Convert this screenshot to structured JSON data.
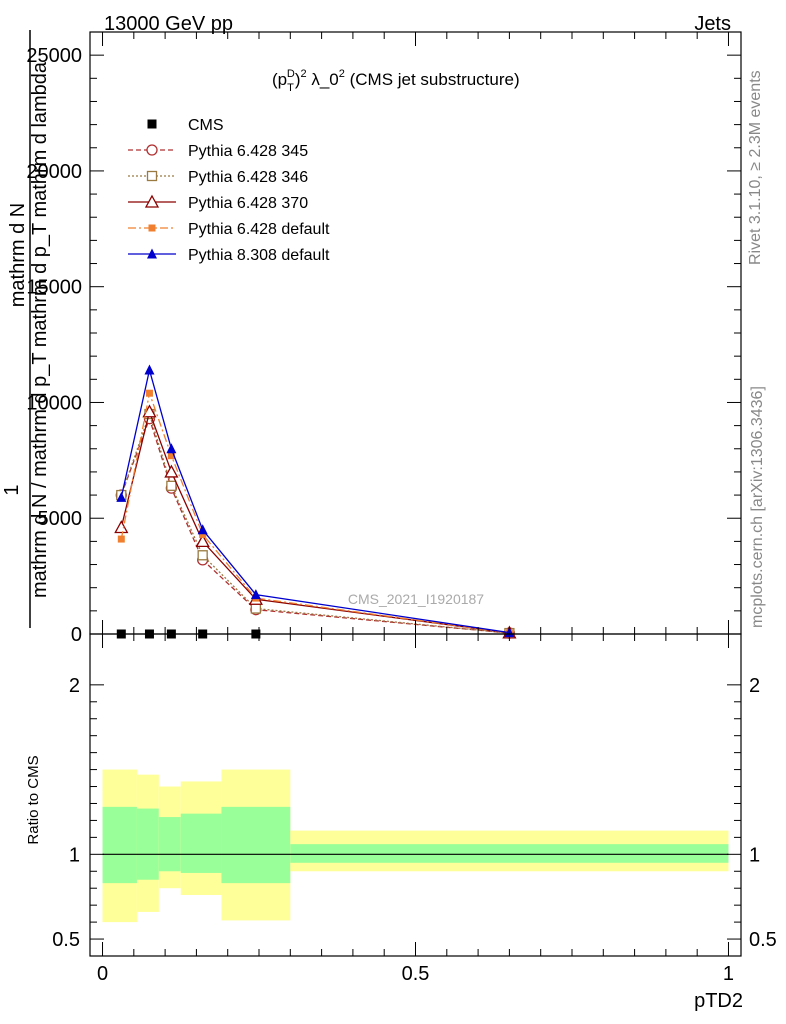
{
  "header": {
    "energy_label": "13000 GeV pp",
    "process_label": "Jets"
  },
  "side_labels": {
    "rivet": "Rivet 3.1.10, ≥ 2.3M events",
    "mcplots": "mcplots.cern.ch [arXiv:1306.3436]"
  },
  "watermark": "CMS_2021_I1920187",
  "colors": {
    "cms": "#000000",
    "p345": "#b03030",
    "p346": "#9a7a40",
    "p370": "#8b0000",
    "pdefault": "#f08030",
    "p8": "#0000cc",
    "band_outer": "#ffff99",
    "band_inner": "#99ff99"
  },
  "chart_data": [
    {
      "type": "line",
      "title": "(p_T^D)^2 λ_0^2 (CMS jet substructure)",
      "title_parts": {
        "p": "(p",
        "sub": "T",
        "sup1": "D",
        "close": ")",
        "sup2": "2",
        "mid": " λ_0",
        "sup3": "2",
        "tail": " (CMS jet substructure)"
      },
      "ylabel_parts": {
        "one": "1",
        "top": "mathrm d N",
        "bottom": "mathrm d N / mathrm d p_T mathrm d p_T mathrm d lambda"
      },
      "xlim": [
        -0.02,
        1.02
      ],
      "ylim": [
        0,
        26000
      ],
      "yticks": [
        0,
        5000,
        10000,
        15000,
        20000,
        25000
      ],
      "ytick_labels": [
        "0",
        "5000",
        "10000",
        "15000",
        "20000",
        "25000"
      ],
      "x": [
        0.03,
        0.075,
        0.11,
        0.16,
        0.245,
        0.65
      ],
      "series": [
        {
          "name": "CMS",
          "key": "cms",
          "marker": "square",
          "values": [
            0,
            0,
            0,
            0,
            0,
            null
          ]
        },
        {
          "name": "Pythia 6.428 345",
          "key": "p345",
          "marker": "circle-open",
          "values": [
            6000,
            9300,
            6300,
            3200,
            1050,
            40
          ]
        },
        {
          "name": "Pythia 6.428 346",
          "key": "p346",
          "marker": "square-open",
          "values": [
            6000,
            9500,
            6400,
            3400,
            1100,
            40
          ]
        },
        {
          "name": "Pythia 6.428 370",
          "key": "p370",
          "marker": "triangle-open",
          "values": [
            4600,
            9600,
            7000,
            4000,
            1500,
            50
          ]
        },
        {
          "name": "Pythia 6.428 default",
          "key": "pdefault",
          "marker": "square-small",
          "values": [
            4100,
            10400,
            7700,
            4300,
            1550,
            50
          ]
        },
        {
          "name": "Pythia 8.308 default",
          "key": "p8",
          "marker": "triangle",
          "values": [
            5900,
            11400,
            8000,
            4500,
            1700,
            60
          ]
        }
      ]
    },
    {
      "type": "area",
      "ylabel": "Ratio to CMS",
      "xlabel": "pTD2",
      "xlim": [
        -0.02,
        1.02
      ],
      "xticks": [
        0,
        0.5,
        1
      ],
      "xtick_labels": [
        "0",
        "0.5",
        "1"
      ],
      "ylim": [
        0.4,
        2.3
      ],
      "yticks": [
        0.5,
        1,
        2
      ],
      "ytick_labels": [
        "0.5",
        "1",
        "2"
      ],
      "bins": [
        {
          "lo": 0.0,
          "hi": 0.055,
          "outer": [
            0.6,
            1.5
          ],
          "inner": [
            0.83,
            1.28
          ]
        },
        {
          "lo": 0.055,
          "hi": 0.09,
          "outer": [
            0.66,
            1.47
          ],
          "inner": [
            0.85,
            1.27
          ]
        },
        {
          "lo": 0.09,
          "hi": 0.125,
          "outer": [
            0.8,
            1.4
          ],
          "inner": [
            0.9,
            1.22
          ]
        },
        {
          "lo": 0.125,
          "hi": 0.19,
          "outer": [
            0.76,
            1.43
          ],
          "inner": [
            0.89,
            1.24
          ]
        },
        {
          "lo": 0.19,
          "hi": 0.3,
          "outer": [
            0.61,
            1.5
          ],
          "inner": [
            0.83,
            1.28
          ]
        },
        {
          "lo": 0.3,
          "hi": 1.0,
          "outer": [
            0.9,
            1.14
          ],
          "inner": [
            0.95,
            1.06
          ]
        }
      ],
      "reference_line": 1
    }
  ]
}
